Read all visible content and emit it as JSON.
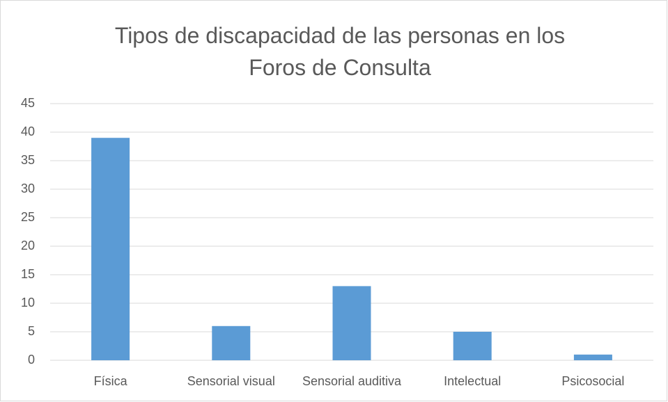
{
  "chart_data": {
    "type": "bar",
    "title": "Tipos de discapacidad de las personas en los Foros de Consulta",
    "categories": [
      "Física",
      "Sensorial visual",
      "Sensorial auditiva",
      "Intelectual",
      "Psicosocial"
    ],
    "values": [
      39,
      6,
      13,
      5,
      1
    ],
    "color": "#5b9bd5",
    "ylim": [
      0,
      45
    ],
    "yticks": [
      0,
      5,
      10,
      15,
      20,
      25,
      30,
      35,
      40,
      45
    ],
    "grid": true
  }
}
